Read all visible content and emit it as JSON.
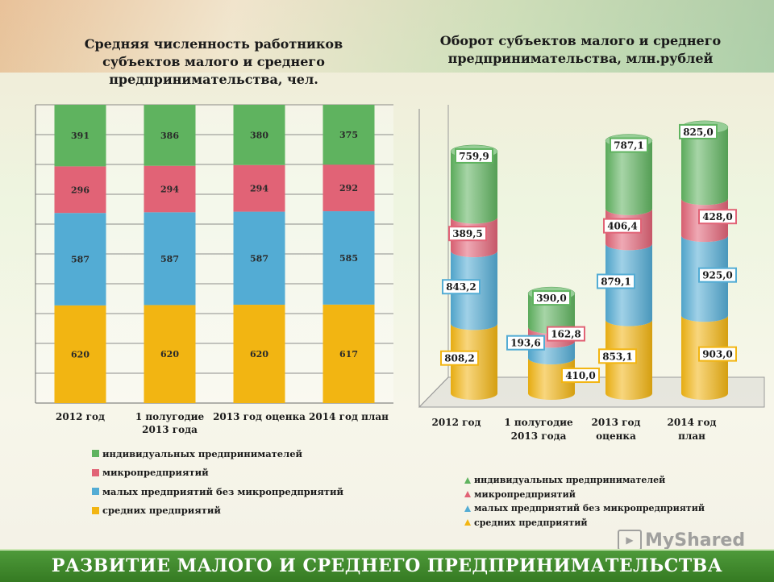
{
  "banner": {
    "text": "РАЗВИТИЕ МАЛОГО И СРЕДНЕГО ПРЕДПРИНИМАТЕЛЬСТВА"
  },
  "watermark": {
    "text": "MyShared",
    "icon": "presentation-icon"
  },
  "colors": {
    "individual": "#5fb35f",
    "micro": "#e16376",
    "small": "#53acd4",
    "medium": "#f2b512",
    "banner": "#3f8a2c"
  },
  "chart_data": [
    {
      "type": "bar",
      "stacked": true,
      "title": "Средняя численность работников субъектов малого и среднего предпринимательства, чел.",
      "categories": [
        "2012 год",
        "1 полугодие 2013 года",
        "2013 год оценка",
        "2014 год план"
      ],
      "series": [
        {
          "name": "средних предприятий",
          "values": [
            620,
            620,
            620,
            617
          ]
        },
        {
          "name": "малых предприятий без микропредприятий",
          "values": [
            587,
            587,
            587,
            585
          ]
        },
        {
          "name": "микропредприятий",
          "values": [
            296,
            294,
            294,
            292
          ]
        },
        {
          "name": "индивидуальных предпринимателей",
          "values": [
            391,
            386,
            380,
            375
          ]
        }
      ],
      "data_labels": [
        [
          "620",
          "620",
          "620",
          "617"
        ],
        [
          "587",
          "587",
          "587",
          "585"
        ],
        [
          "296",
          "294",
          "294",
          "292"
        ],
        [
          "391",
          "386",
          "380",
          "375"
        ]
      ],
      "legend": [
        "индивидуальных предпринимателей",
        "микропредприятий",
        "малых предприятий без микропредприятий",
        "средних предприятий"
      ],
      "legend_position": "bottom",
      "grid": true
    },
    {
      "type": "bar",
      "stacked": true,
      "style": "3d-cylinder",
      "title": "Оборот субъектов малого и среднего предпринимательства, млн.рублей",
      "categories": [
        "2012 год",
        "1 полугодие 2013 года",
        "2013 год оценка",
        "2014 год план"
      ],
      "series": [
        {
          "name": "средних предприятий",
          "values": [
            808.2,
            410.0,
            853.1,
            903.0
          ]
        },
        {
          "name": "малых предприятий без микропредприятий",
          "values": [
            843.2,
            193.6,
            879.1,
            925.0
          ]
        },
        {
          "name": "микропредприятий",
          "values": [
            389.5,
            162.8,
            406.4,
            428.0
          ]
        },
        {
          "name": "индивидуальных предпринимателей",
          "values": [
            759.9,
            390.0,
            787.1,
            825.0
          ]
        }
      ],
      "data_labels": [
        [
          "808,2",
          "410,0",
          "853,1",
          "903,0"
        ],
        [
          "843,2",
          "193,6",
          "879,1",
          "925,0"
        ],
        [
          "389,5",
          "162,8",
          "406,4",
          "428,0"
        ],
        [
          "759,9",
          "390,0",
          "787,1",
          "825,0"
        ]
      ],
      "legend": [
        "индивидуальных предпринимателей",
        "микропредприятий",
        "малых предприятий без микропредприятий",
        "средних предприятий"
      ],
      "legend_position": "bottom",
      "grid": false
    }
  ]
}
